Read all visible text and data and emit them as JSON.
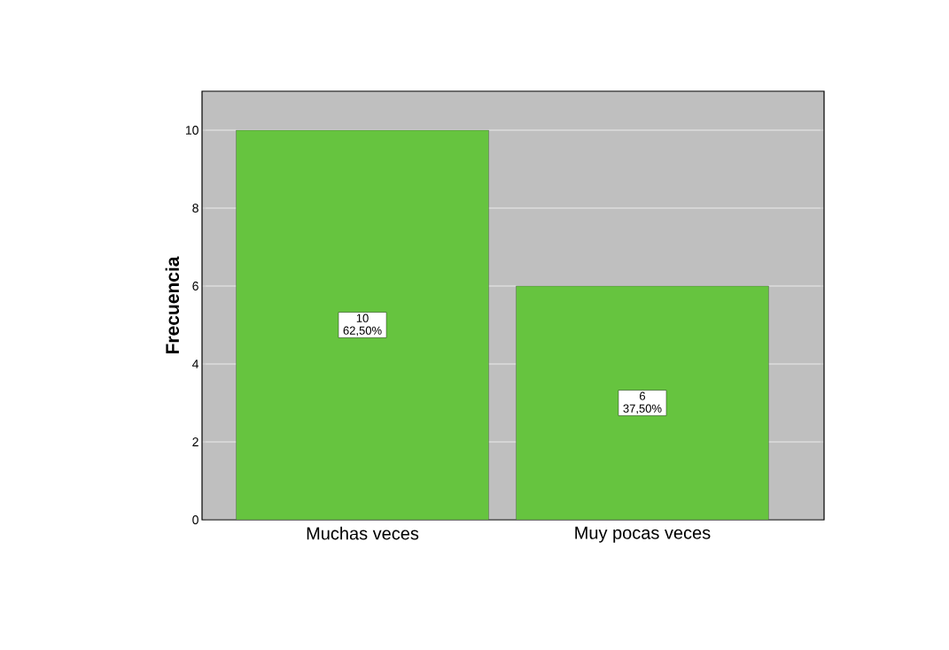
{
  "chart_data": {
    "type": "bar",
    "ylabel": "Frecuencia",
    "categories": [
      "Muchas veces",
      "Muy pocas veces"
    ],
    "values": [
      10,
      6
    ],
    "value_labels": [
      "10 62,50%",
      "6 37,50%"
    ],
    "color": "#66c43f",
    "ylim": [
      0,
      11
    ],
    "yticks": [
      0,
      2,
      4,
      6,
      8,
      10
    ],
    "grid": "y"
  }
}
